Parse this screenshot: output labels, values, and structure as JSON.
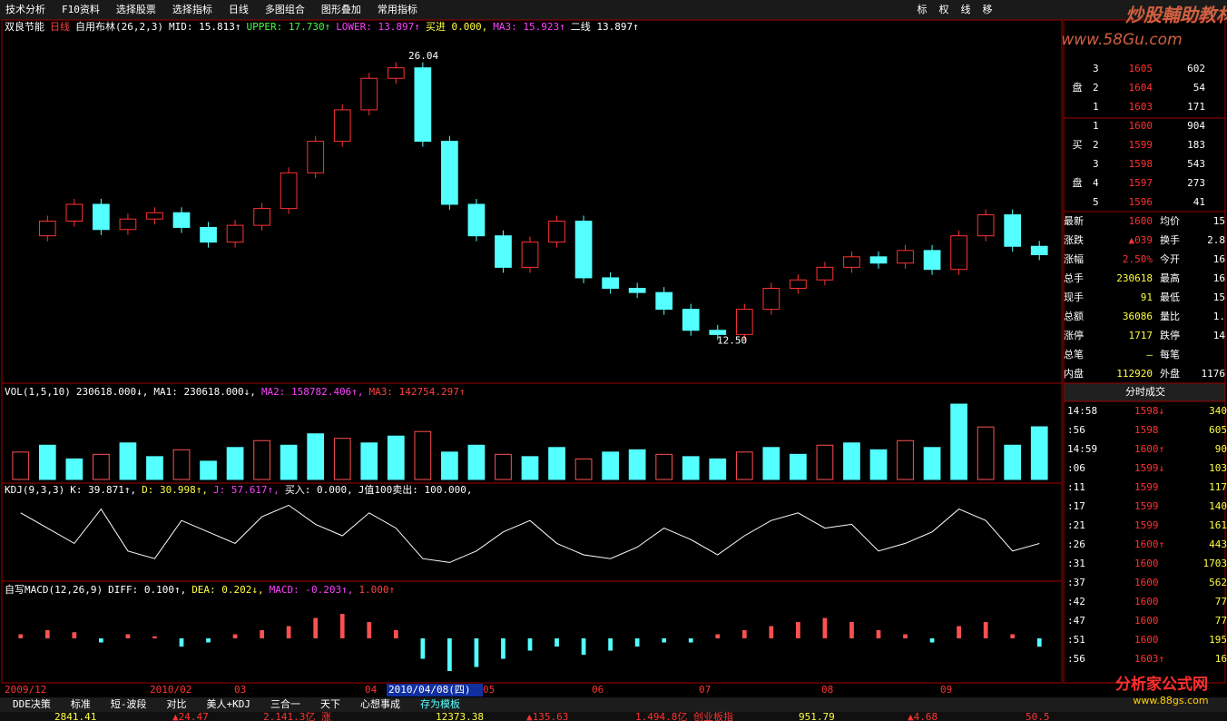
{
  "menu": [
    "技术分析",
    "F10资料",
    "选择股票",
    "选择指标",
    "日线",
    "多图组合",
    "图形叠加",
    "常用指标"
  ],
  "tools": [
    "标",
    "权",
    "线",
    "移"
  ],
  "watermark": {
    "title": "炒股輔助教材58股网",
    "url": "www.58Gu.com"
  },
  "header": [
    "双良节能",
    "日线",
    "自用布林(26,2,3)",
    "MID: 15.813↑",
    "UPPER: 17.730↑",
    "LOWER: 13.897↑",
    "买进 0.000,",
    "MA3: 15.923↑",
    "二线 13.897↑"
  ],
  "chart_data": {
    "type": "candlestick",
    "x": [
      "2009/12",
      "2010/02",
      "03",
      "04",
      "2010/04/08(四)",
      "05",
      "06",
      "07",
      "08",
      "09"
    ],
    "closes": [
      17.5,
      18.2,
      19.0,
      17.8,
      18.3,
      18.6,
      17.9,
      17.2,
      18.0,
      18.8,
      20.5,
      22.0,
      23.5,
      25.0,
      25.5,
      22.0,
      19.0,
      17.5,
      16.0,
      17.2,
      18.2,
      15.5,
      15.0,
      14.8,
      14.0,
      13.0,
      12.8,
      14.0,
      15.0,
      15.4,
      16.0,
      16.5,
      16.2,
      16.8,
      15.9,
      17.5,
      18.5,
      17.0,
      16.6
    ],
    "ylim": [
      11,
      27
    ],
    "annotations": [
      {
        "label": "26.04",
        "value": 26.04
      },
      {
        "label": "12.50",
        "value": 12.5
      }
    ],
    "volume": {
      "header": [
        "VOL(1,5,10)",
        "230618.000↓,",
        "MA1: 230618.000↓,",
        "MA2: 158782.406↑,",
        "MA3: 142754.297↑"
      ],
      "values": [
        120000,
        150000,
        90000,
        110000,
        160000,
        100000,
        130000,
        80000,
        140000,
        170000,
        150000,
        200000,
        180000,
        160000,
        190000,
        210000,
        120000,
        150000,
        110000,
        100000,
        140000,
        90000,
        120000,
        130000,
        110000,
        100000,
        90000,
        120000,
        140000,
        110000,
        150000,
        160000,
        130000,
        170000,
        140000,
        330000,
        230000,
        150000,
        230618
      ],
      "ylim": [
        0,
        350000
      ]
    },
    "kdj": {
      "header": [
        "KDJ(9,3,3)",
        "K: 39.871↑,",
        "D: 30.998↑,",
        "J: 57.617↑,",
        "买入: 0.000,",
        "J值100卖出: 100.000,"
      ],
      "values": [
        80,
        60,
        40,
        85,
        30,
        20,
        70,
        55,
        40,
        75,
        90,
        65,
        50,
        80,
        60,
        20,
        15,
        30,
        55,
        70,
        40,
        25,
        20,
        35,
        60,
        45,
        25,
        50,
        70,
        80,
        60,
        65,
        30,
        40,
        55,
        85,
        70,
        30,
        39.871
      ],
      "ylim": [
        0,
        100
      ]
    },
    "macd": {
      "header": [
        "自写MACD(12,26,9)",
        "DIFF: 0.100↑,",
        "DEA: 0.202↓,",
        "MACD: -0.203↑,",
        "1.000↑"
      ],
      "values": [
        0.1,
        0.2,
        0.15,
        -0.1,
        0.1,
        0.05,
        -0.2,
        -0.1,
        0.1,
        0.2,
        0.3,
        0.5,
        0.6,
        0.4,
        0.2,
        -0.5,
        -0.8,
        -0.7,
        -0.5,
        -0.3,
        -0.2,
        -0.4,
        -0.3,
        -0.2,
        -0.1,
        -0.1,
        0.1,
        0.2,
        0.3,
        0.4,
        0.5,
        0.4,
        0.2,
        0.1,
        -0.1,
        0.3,
        0.4,
        0.1,
        -0.203
      ],
      "ylim": [
        -1,
        1
      ]
    }
  },
  "sell_label": "盘",
  "sell": [
    [
      "3",
      "1605",
      "602"
    ],
    [
      "2",
      "1604",
      "54"
    ],
    [
      "1",
      "1603",
      "171"
    ]
  ],
  "buy_label": [
    "买",
    "盘"
  ],
  "buy": [
    [
      "1",
      "1600",
      "904"
    ],
    [
      "2",
      "1599",
      "183"
    ],
    [
      "3",
      "1598",
      "543"
    ],
    [
      "4",
      "1597",
      "273"
    ],
    [
      "5",
      "1596",
      "41"
    ]
  ],
  "stats": [
    [
      "最新",
      "1600",
      "均价",
      "15"
    ],
    [
      "涨跌",
      "▲039",
      "换手",
      "2.8"
    ],
    [
      "涨幅",
      "2.50%",
      "今开",
      "16"
    ],
    [
      "总手",
      "230618",
      "最高",
      "16"
    ],
    [
      "现手",
      "91",
      "最低",
      "15"
    ],
    [
      "总额",
      "36086",
      "量比",
      "1."
    ],
    [
      "涨停",
      "1717",
      "跌停",
      "14"
    ],
    [
      "总笔",
      "–",
      "每笔",
      ""
    ],
    [
      "内盘",
      "112920",
      "外盘",
      "1176"
    ]
  ],
  "ticks_title": "分时成交",
  "ticks": [
    [
      "14:58",
      "1598↓",
      "340"
    ],
    [
      ":56",
      "1598",
      "605"
    ],
    [
      "14:59",
      "1600↑",
      "90"
    ],
    [
      ":06",
      "1599↓",
      "103"
    ],
    [
      ":11",
      "1599",
      "117"
    ],
    [
      ":17",
      "1599",
      "140"
    ],
    [
      ":21",
      "1599",
      "161"
    ],
    [
      ":26",
      "1600↑",
      "443"
    ],
    [
      ":31",
      "1600",
      "1703"
    ],
    [
      ":37",
      "1600",
      "562"
    ],
    [
      ":42",
      "1600",
      "77"
    ],
    [
      ":47",
      "1600",
      "77"
    ],
    [
      ":51",
      "1600",
      "195"
    ],
    [
      ":56",
      "1603↑",
      "16"
    ]
  ],
  "tabs": [
    "DDE决策",
    "标准",
    "短-波段",
    "对比",
    "美人+KDJ",
    "三合一",
    "天下",
    "心想事成",
    "存为模板"
  ],
  "status": [
    "2841.41",
    "▲24.47",
    "2.141.3亿 涨",
    "12373.38",
    "▲135.63",
    "1.494.8亿 创业板指",
    "951.79",
    "▲4.68",
    "50.5"
  ],
  "logo": {
    "title": "分析家公式网",
    "url": "www.88gs.com"
  }
}
